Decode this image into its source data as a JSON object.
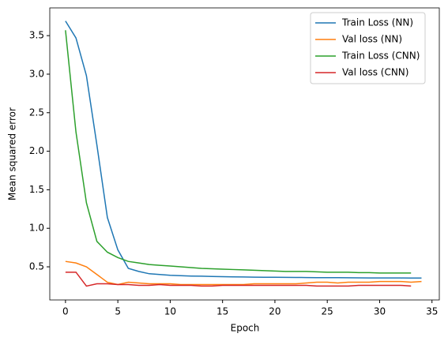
{
  "chart_data": {
    "type": "line",
    "xlabel": "Epoch",
    "ylabel": "Mean squared error",
    "x": [
      0,
      1,
      2,
      3,
      4,
      5,
      6,
      7,
      8,
      9,
      10,
      11,
      12,
      13,
      14,
      15,
      16,
      17,
      18,
      19,
      20,
      21,
      22,
      23,
      24,
      25,
      26,
      27,
      28,
      29,
      30,
      31,
      32,
      33,
      34
    ],
    "series": [
      {
        "name": "Train Loss (NN)",
        "color": "#1f77b4",
        "values": [
          3.69,
          3.47,
          2.98,
          2.08,
          1.14,
          0.72,
          0.48,
          0.44,
          0.41,
          0.4,
          0.39,
          0.385,
          0.38,
          0.378,
          0.375,
          0.372,
          0.37,
          0.368,
          0.366,
          0.365,
          0.364,
          0.363,
          0.362,
          0.361,
          0.36,
          0.36,
          0.359,
          0.358,
          0.357,
          0.356,
          0.356,
          0.355,
          0.355,
          0.354,
          0.354
        ]
      },
      {
        "name": "Val loss (NN)",
        "color": "#ff7f0e",
        "values": [
          0.57,
          0.55,
          0.5,
          0.4,
          0.3,
          0.27,
          0.3,
          0.29,
          0.28,
          0.28,
          0.28,
          0.27,
          0.27,
          0.27,
          0.27,
          0.27,
          0.27,
          0.27,
          0.28,
          0.28,
          0.28,
          0.28,
          0.28,
          0.29,
          0.3,
          0.3,
          0.29,
          0.3,
          0.3,
          0.3,
          0.31,
          0.31,
          0.31,
          0.3,
          0.31
        ]
      },
      {
        "name": "Train Loss (CNN)",
        "color": "#2ca02c",
        "values": [
          3.57,
          2.25,
          1.33,
          0.83,
          0.69,
          0.62,
          0.57,
          0.55,
          0.53,
          0.52,
          0.51,
          0.5,
          0.49,
          0.48,
          0.475,
          0.47,
          0.465,
          0.46,
          0.455,
          0.45,
          0.445,
          0.44,
          0.44,
          0.44,
          0.435,
          0.43,
          0.43,
          0.43,
          0.425,
          0.425,
          0.42,
          0.42,
          0.42,
          0.42,
          null
        ]
      },
      {
        "name": "Val loss (CNN)",
        "color": "#d62728",
        "values": [
          0.43,
          0.43,
          0.25,
          0.28,
          0.28,
          0.27,
          0.27,
          0.26,
          0.26,
          0.27,
          0.26,
          0.26,
          0.26,
          0.25,
          0.25,
          0.26,
          0.26,
          0.26,
          0.26,
          0.26,
          0.26,
          0.26,
          0.26,
          0.26,
          0.25,
          0.25,
          0.25,
          0.25,
          0.26,
          0.26,
          0.26,
          0.26,
          0.26,
          0.25,
          null
        ]
      }
    ],
    "xlim": [
      -1.5,
      35.7
    ],
    "xticks": [
      0,
      5,
      10,
      15,
      20,
      25,
      30,
      35
    ],
    "ylim": [
      0.07,
      3.86
    ],
    "yticks": [
      0.5,
      {
        "value": 1.0,
        "label": "1.0"
      },
      1.5,
      {
        "value": 2.0,
        "label": "2.0"
      },
      2.5,
      {
        "value": 3.0,
        "label": "3.0"
      },
      3.5
    ],
    "legend": "upper right"
  }
}
